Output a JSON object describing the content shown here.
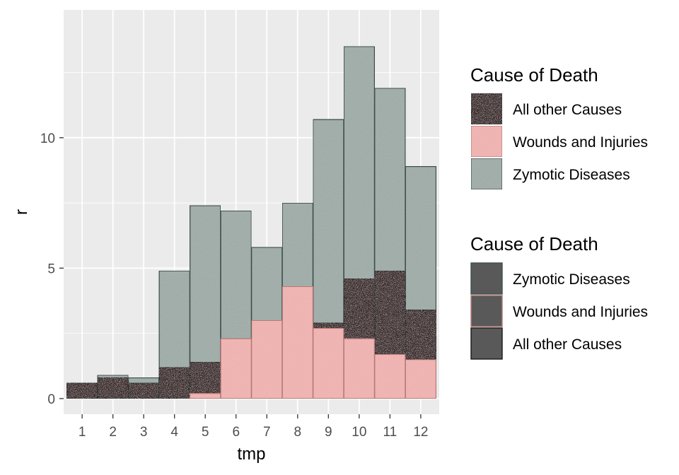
{
  "chart_data": {
    "type": "bar",
    "stacking": "overlay",
    "xlabel": "tmp",
    "ylabel": "r",
    "categories": [
      "1",
      "2",
      "3",
      "4",
      "5",
      "6",
      "7",
      "8",
      "9",
      "10",
      "11",
      "12"
    ],
    "ylim": [
      -0.6,
      14.9
    ],
    "yticks": [
      0,
      5,
      10
    ],
    "grid": true,
    "legend_position": "right",
    "series": [
      {
        "name": "Zymotic Diseases",
        "values": [
          0.4,
          0.9,
          0.8,
          4.9,
          7.4,
          7.2,
          5.8,
          7.5,
          10.7,
          13.5,
          11.9,
          8.9
        ],
        "fill": "#a9b5b1",
        "stroke": "#3f514f"
      },
      {
        "name": "All other Causes",
        "values": [
          0.6,
          0.8,
          0.6,
          1.2,
          1.4,
          1.0,
          1.2,
          1.5,
          2.9,
          4.6,
          4.9,
          3.4
        ],
        "fill": "#3a2a2c",
        "stroke": "#1a1a1a"
      },
      {
        "name": "Wounds and Injuries",
        "values": [
          0.0,
          0.0,
          0.0,
          0.0,
          0.2,
          2.3,
          3.0,
          4.3,
          2.7,
          2.3,
          1.7,
          1.5
        ],
        "fill": "#f2b7b5",
        "stroke": "#b77b78"
      }
    ]
  },
  "legend1": {
    "title": "Cause of Death",
    "items": [
      "All other Causes",
      "Wounds and Injuries",
      "Zymotic Diseases"
    ]
  },
  "legend2": {
    "title": "Cause of Death",
    "items": [
      "Zymotic Diseases",
      "Wounds and Injuries",
      "All other Causes"
    ],
    "key_fill": "#595959"
  }
}
